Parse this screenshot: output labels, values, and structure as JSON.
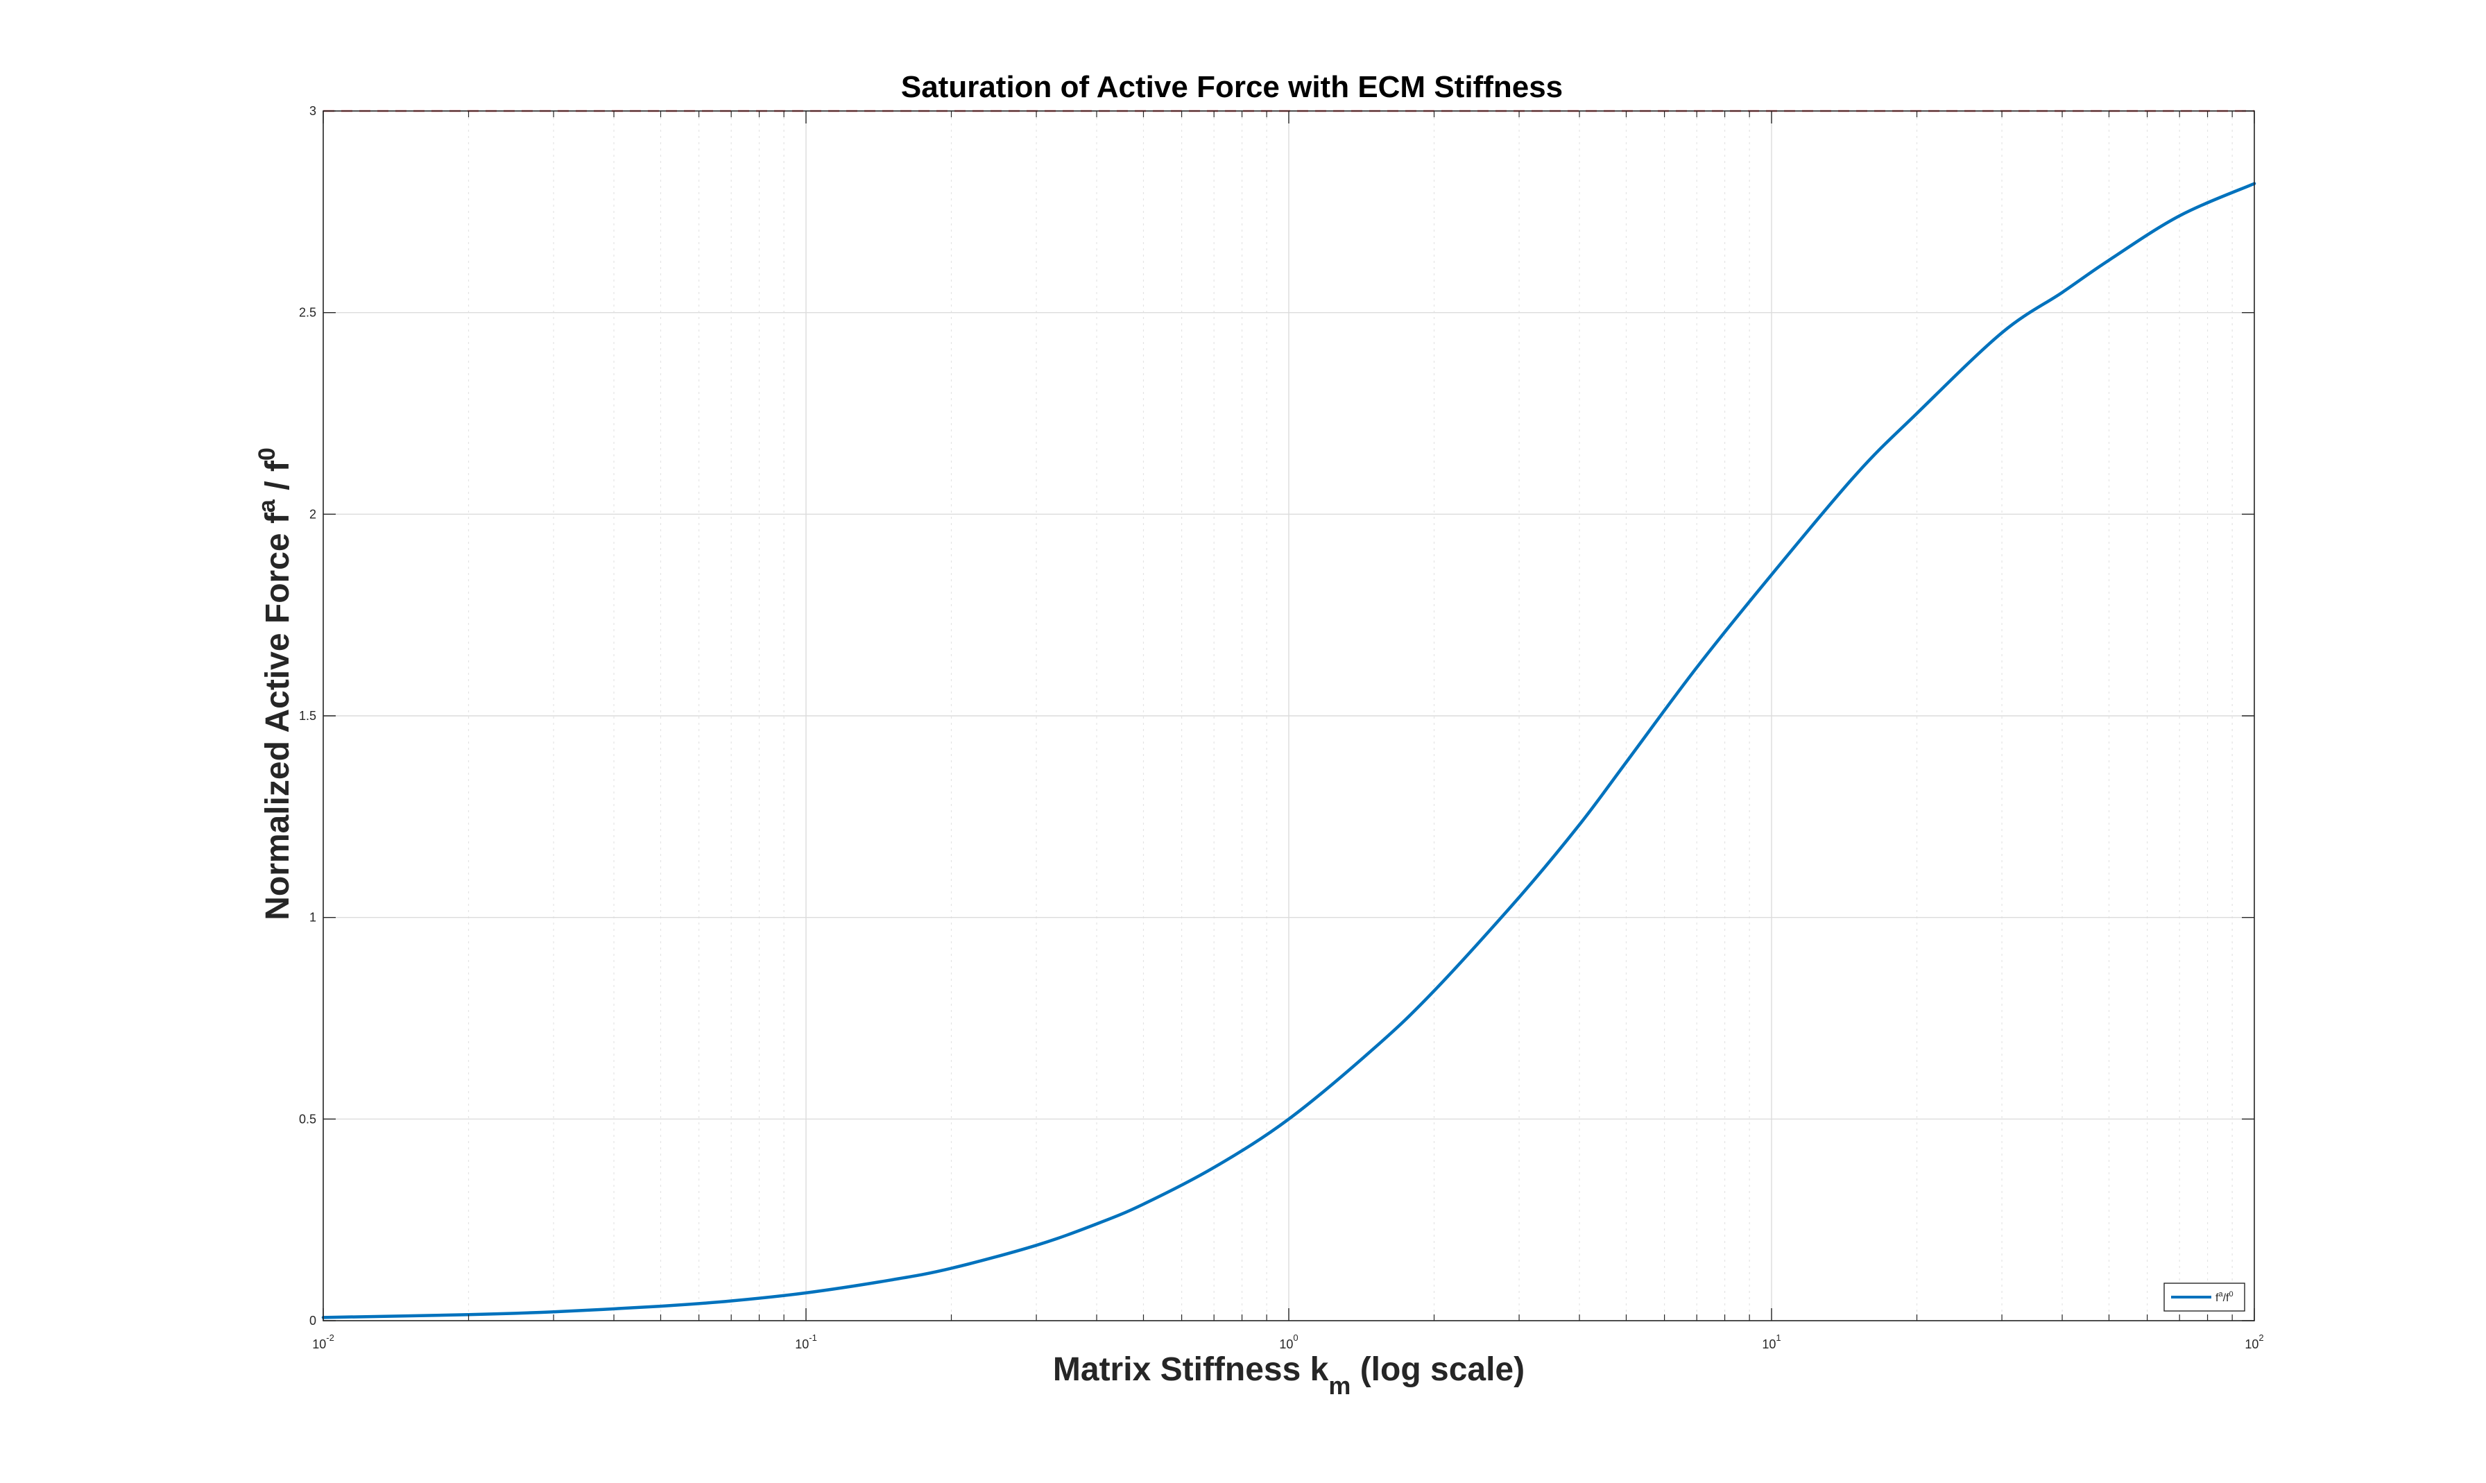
{
  "chart_data": {
    "type": "line",
    "title": "Saturation of Active Force with ECM Stiffness",
    "xlabel": {
      "main": "Matrix Stiffness k",
      "sub": "m",
      "suffix": " (log scale)"
    },
    "ylabel": {
      "part1": "Normalized Active Force f",
      "sup1": "a",
      "part2": " / f",
      "sup2": "0"
    },
    "xscale": "log",
    "xlim": [
      0.01,
      100
    ],
    "ylim": [
      0,
      3
    ],
    "grid": true,
    "legend_position": "bottom-right",
    "x_ticks": [
      {
        "value": 0.01,
        "base": "10",
        "exp": "-2"
      },
      {
        "value": 0.1,
        "base": "10",
        "exp": "-1"
      },
      {
        "value": 1,
        "base": "10",
        "exp": "0"
      },
      {
        "value": 10,
        "base": "10",
        "exp": "1"
      },
      {
        "value": 100,
        "base": "10",
        "exp": "2"
      }
    ],
    "y_ticks": [
      {
        "value": 0,
        "label": "0"
      },
      {
        "value": 0.5,
        "label": "0.5"
      },
      {
        "value": 1,
        "label": "1"
      },
      {
        "value": 1.5,
        "label": "1.5"
      },
      {
        "value": 2,
        "label": "2"
      },
      {
        "value": 2.5,
        "label": "2.5"
      },
      {
        "value": 3,
        "label": "3"
      }
    ],
    "reference_lines": [
      {
        "orientation": "horizontal",
        "value": 3,
        "color": "#e8474a",
        "style": "dashed"
      }
    ],
    "series": [
      {
        "legend": {
          "f": "f",
          "sup1": "a",
          "slash": "/f",
          "sup2": "0"
        },
        "color": "#0072BD",
        "points": [
          [
            0.01,
            0.008
          ],
          [
            0.02,
            0.015
          ],
          [
            0.03,
            0.022
          ],
          [
            0.05,
            0.036
          ],
          [
            0.07,
            0.049
          ],
          [
            0.1,
            0.069
          ],
          [
            0.15,
            0.101
          ],
          [
            0.2,
            0.13
          ],
          [
            0.3,
            0.187
          ],
          [
            0.4,
            0.24
          ],
          [
            0.5,
            0.289
          ],
          [
            0.7,
            0.38
          ],
          [
            1,
            0.5
          ],
          [
            1.5,
            0.675
          ],
          [
            2,
            0.818
          ],
          [
            3,
            1.05
          ],
          [
            4,
            1.23
          ],
          [
            5,
            1.385
          ],
          [
            7,
            1.62
          ],
          [
            10,
            1.85
          ],
          [
            15,
            2.1
          ],
          [
            20,
            2.25
          ],
          [
            30,
            2.45
          ],
          [
            40,
            2.55
          ],
          [
            50,
            2.63
          ],
          [
            70,
            2.74
          ],
          [
            100,
            2.82
          ]
        ]
      }
    ]
  }
}
